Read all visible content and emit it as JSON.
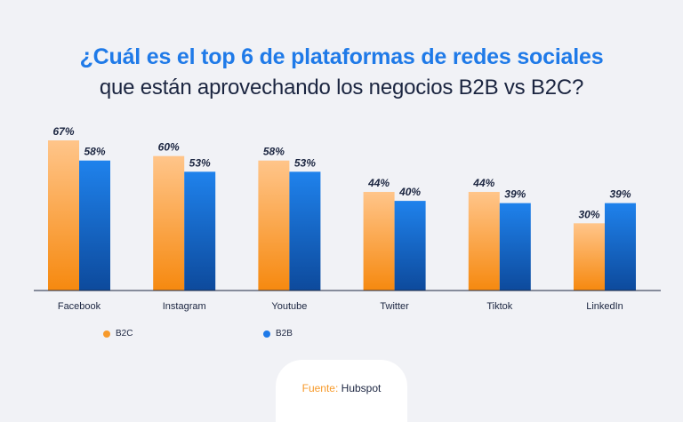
{
  "header": {
    "title_line1": "¿Cuál es el top 6 de plataformas de redes sociales",
    "title_line2": "que están aprovechando los negocios B2B vs B2C?"
  },
  "chart_data": {
    "type": "bar",
    "categories": [
      "Facebook",
      "Instagram",
      "Youtube",
      "Twitter",
      "Tiktok",
      "LinkedIn"
    ],
    "series": [
      {
        "name": "B2C",
        "values": [
          67,
          60,
          58,
          44,
          44,
          30
        ],
        "labels": [
          "67%",
          "60%",
          "58%",
          "44%",
          "44%",
          "30%"
        ],
        "color": "#f79a2b"
      },
      {
        "name": "B2B",
        "values": [
          58,
          53,
          53,
          40,
          39,
          39
        ],
        "labels": [
          "58%",
          "53%",
          "53%",
          "40%",
          "39%",
          "39%"
        ],
        "color": "#1f7ae8"
      }
    ],
    "ylim": [
      0,
      67
    ],
    "grid": false,
    "legend": "bottom-left"
  },
  "legend": {
    "b2c": "B2C",
    "b2b": "B2B"
  },
  "footer": {
    "source_key": "Fuente:",
    "source_value": "Hubspot"
  }
}
